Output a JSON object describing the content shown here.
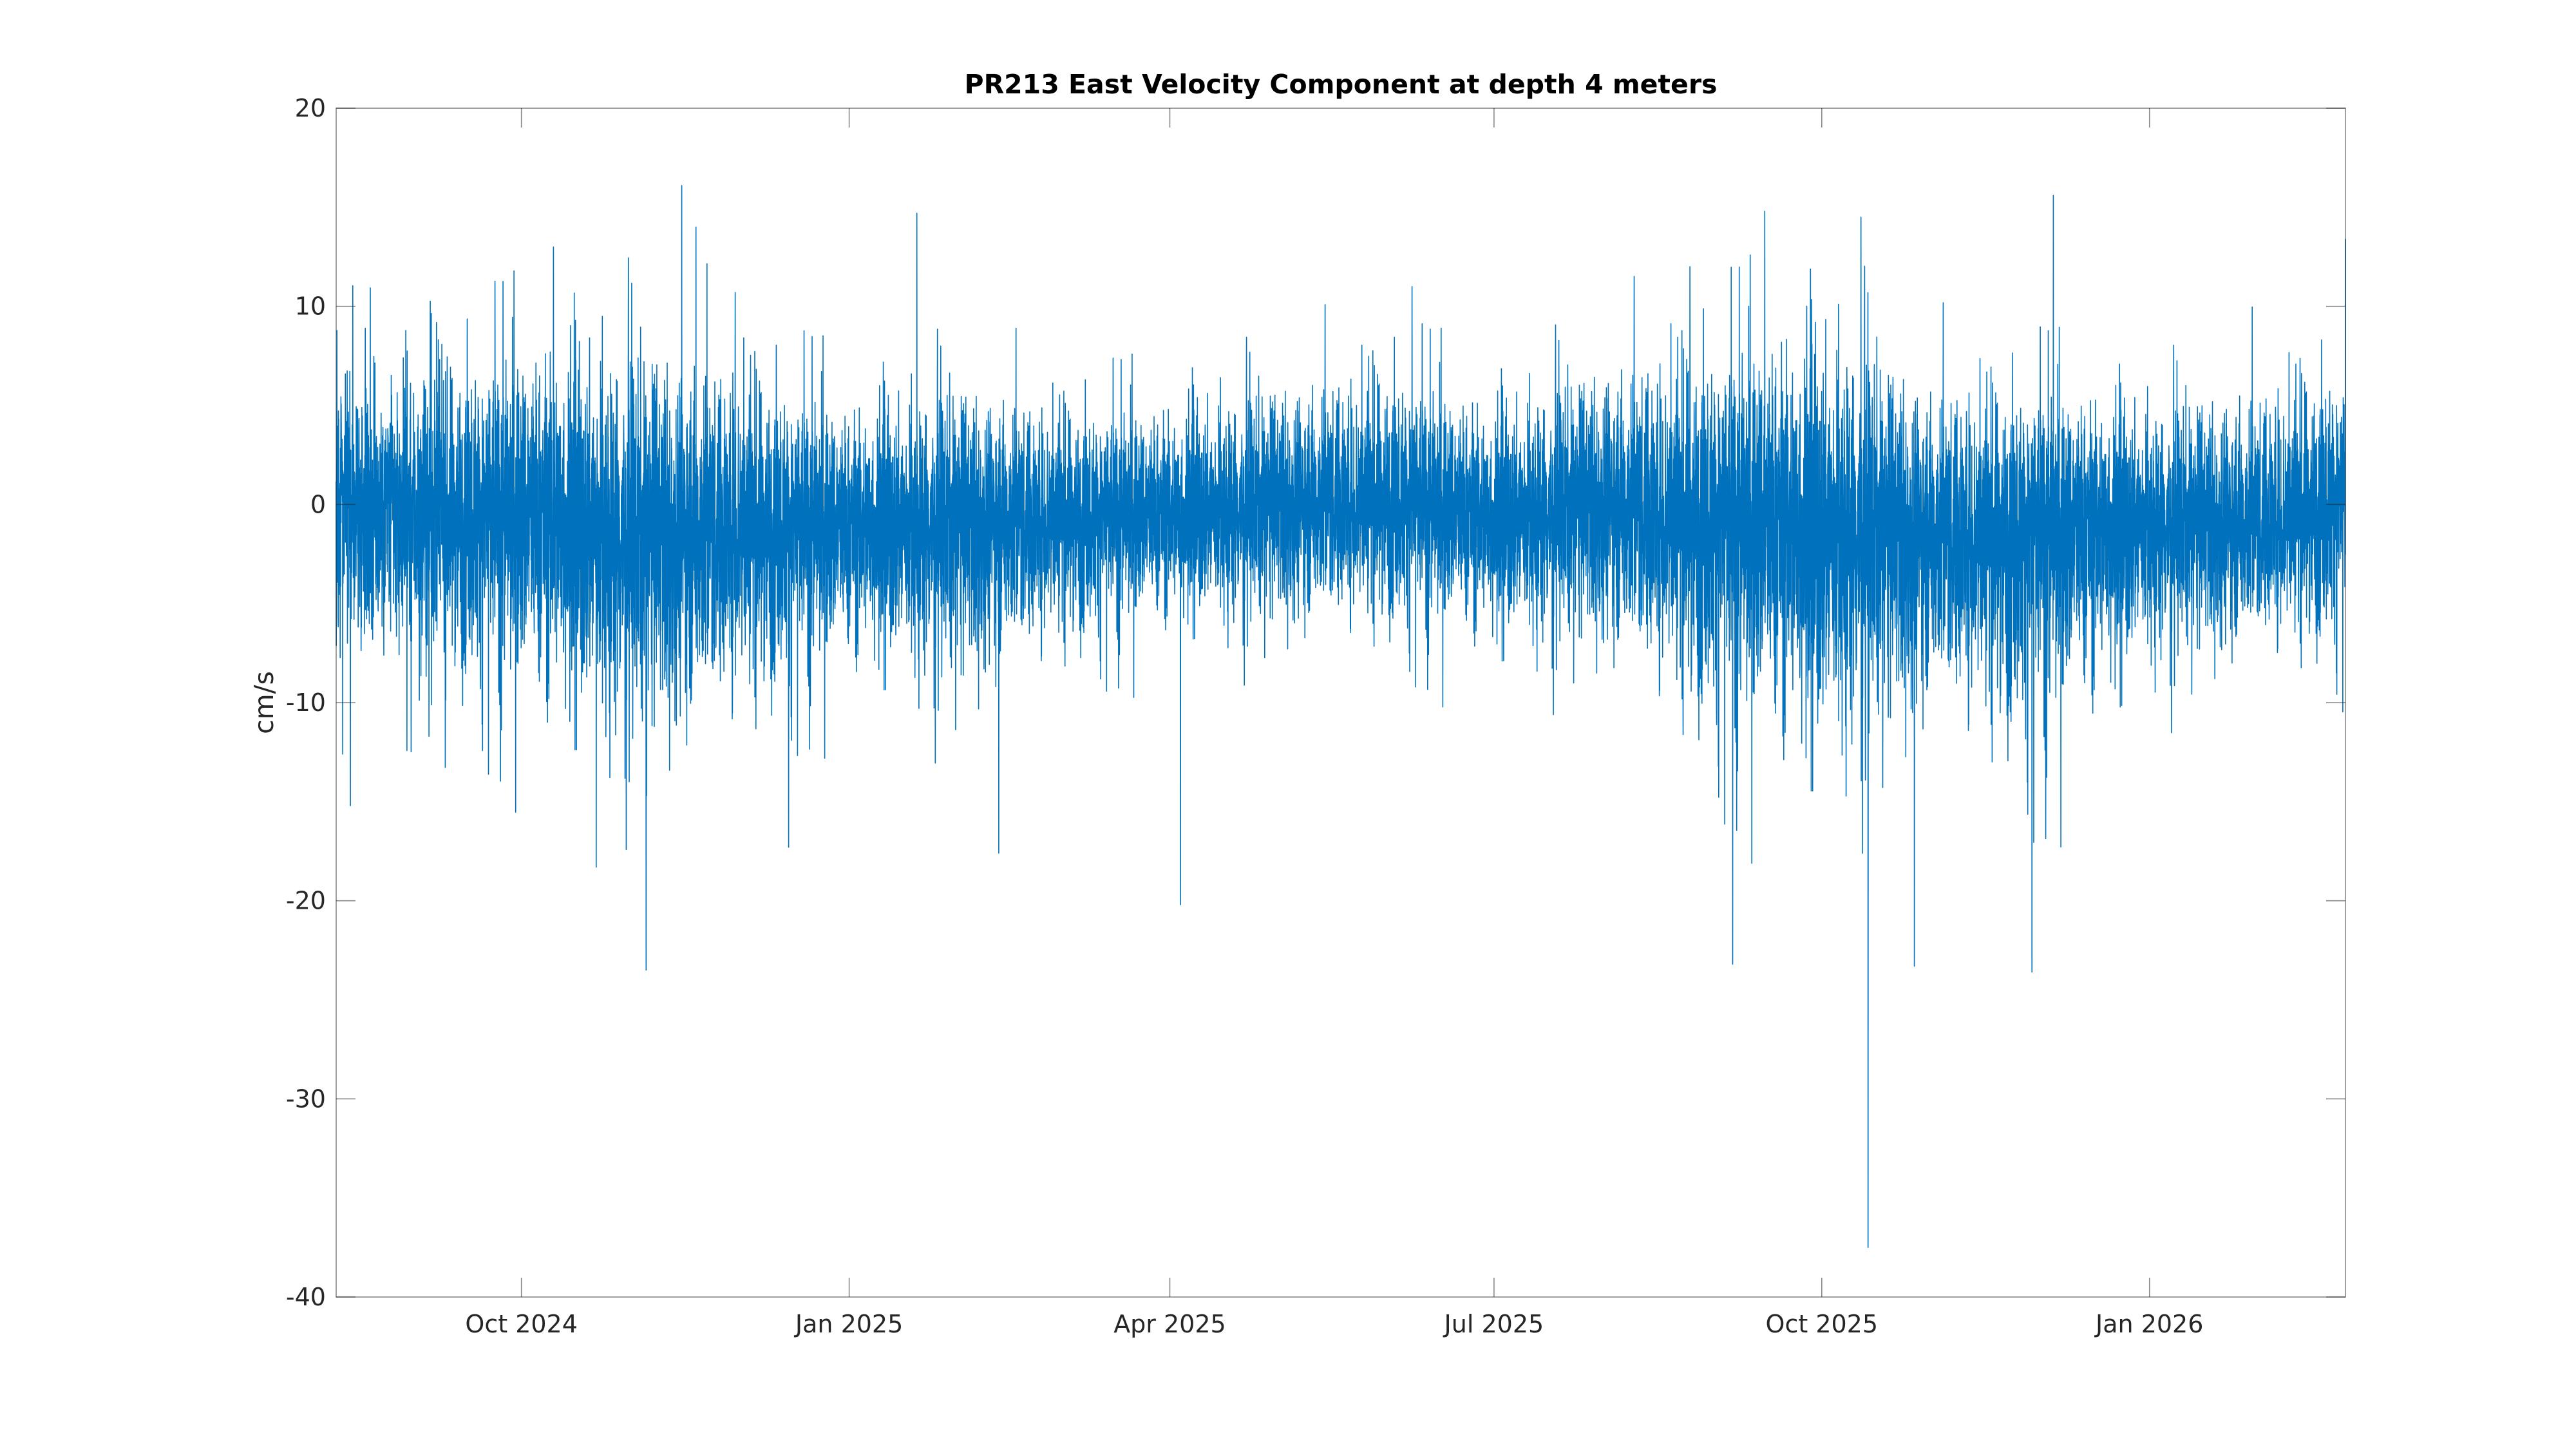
{
  "chart_data": {
    "type": "line",
    "title": "PR213 East Velocity Component at depth 4 meters",
    "xlabel": "",
    "ylabel": "cm/s",
    "x_start": "2024-08-10",
    "x_end": "2026-02-25",
    "xlim": [
      "2024-08-10",
      "2026-02-25"
    ],
    "ylim": [
      -40,
      20
    ],
    "grid": false,
    "legend": "none",
    "x_ticks": [
      {
        "date": "2024-10-01",
        "label": "Oct 2024"
      },
      {
        "date": "2025-01-01",
        "label": "Jan 2025"
      },
      {
        "date": "2025-04-01",
        "label": "Apr 2025"
      },
      {
        "date": "2025-07-01",
        "label": "Jul 2025"
      },
      {
        "date": "2025-10-01",
        "label": "Oct 2025"
      },
      {
        "date": "2026-01-01",
        "label": "Jan 2026"
      }
    ],
    "y_ticks": [
      {
        "value": 20,
        "label": "20"
      },
      {
        "value": 10,
        "label": "10"
      },
      {
        "value": 0,
        "label": "0"
      },
      {
        "value": -10,
        "label": "-10"
      },
      {
        "value": -20,
        "label": "-20"
      },
      {
        "value": -30,
        "label": "-30"
      },
      {
        "value": -40,
        "label": "-40"
      }
    ],
    "series": [
      {
        "color": "#0072bd",
        "peaks": [
          {
            "date": "2024-08-14",
            "value": -15.2
          },
          {
            "date": "2024-10-10",
            "value": 13
          },
          {
            "date": "2024-10-22",
            "value": -18.3
          },
          {
            "date": "2024-11-05",
            "value": -23.5
          },
          {
            "date": "2024-11-15",
            "value": 16.1
          },
          {
            "date": "2024-11-19",
            "value": 14.0
          },
          {
            "date": "2024-11-30",
            "value": 10.7
          },
          {
            "date": "2024-12-15",
            "value": -17.3
          },
          {
            "date": "2025-01-20",
            "value": 14.7
          },
          {
            "date": "2025-02-12",
            "value": -17.6
          },
          {
            "date": "2025-04-04",
            "value": -20.2
          },
          {
            "date": "2025-06-08",
            "value": 11.0
          },
          {
            "date": "2025-08-25",
            "value": 12.0
          },
          {
            "date": "2025-09-06",
            "value": -23.2
          },
          {
            "date": "2025-09-15",
            "value": 14.8
          },
          {
            "date": "2025-10-12",
            "value": 14.5
          },
          {
            "date": "2025-10-14",
            "value": -37.5
          },
          {
            "date": "2025-10-27",
            "value": -23.3
          },
          {
            "date": "2025-11-29",
            "value": -23.6
          },
          {
            "date": "2025-12-05",
            "value": 15.6
          },
          {
            "date": "2026-02-25",
            "value": 13.4
          }
        ],
        "values": [
          {
            "date": "2024-08-10",
            "value": 0.0
          },
          {
            "date": "2024-09-01",
            "value": -0.5
          },
          {
            "date": "2024-10-01",
            "value": -0.2
          },
          {
            "date": "2024-11-01",
            "value": -1.5
          },
          {
            "date": "2024-12-01",
            "value": -0.8
          },
          {
            "date": "2025-01-01",
            "value": -1.0
          },
          {
            "date": "2025-02-01",
            "value": -0.6
          },
          {
            "date": "2025-03-01",
            "value": -0.4
          },
          {
            "date": "2025-04-01",
            "value": -0.5
          },
          {
            "date": "2025-05-01",
            "value": 0.1
          },
          {
            "date": "2025-06-01",
            "value": 0.3
          },
          {
            "date": "2025-07-01",
            "value": -0.6
          },
          {
            "date": "2025-08-01",
            "value": 0.2
          },
          {
            "date": "2025-09-01",
            "value": -0.5
          },
          {
            "date": "2025-10-01",
            "value": -1.0
          },
          {
            "date": "2025-11-01",
            "value": -1.2
          },
          {
            "date": "2025-12-01",
            "value": -0.8
          },
          {
            "date": "2026-01-01",
            "value": -0.7
          },
          {
            "date": "2026-02-01",
            "value": -1.0
          },
          {
            "date": "2026-02-25",
            "value": 0.5
          }
        ],
        "envelope": [
          {
            "date": "2024-08-10",
            "upper": 7,
            "lower": -8
          },
          {
            "date": "2024-09-01",
            "upper": 7,
            "lower": -8
          },
          {
            "date": "2024-10-01",
            "upper": 8,
            "lower": -10
          },
          {
            "date": "2024-11-01",
            "upper": 8,
            "lower": -12
          },
          {
            "date": "2024-12-01",
            "upper": 7,
            "lower": -10
          },
          {
            "date": "2025-01-01",
            "upper": 5,
            "lower": -8
          },
          {
            "date": "2025-02-01",
            "upper": 6,
            "lower": -9
          },
          {
            "date": "2025-03-01",
            "upper": 5,
            "lower": -7
          },
          {
            "date": "2025-04-01",
            "upper": 5,
            "lower": -6
          },
          {
            "date": "2025-05-01",
            "upper": 6,
            "lower": -6
          },
          {
            "date": "2025-06-01",
            "upper": 7,
            "lower": -6
          },
          {
            "date": "2025-07-01",
            "upper": 5,
            "lower": -7
          },
          {
            "date": "2025-08-01",
            "upper": 7,
            "lower": -7
          },
          {
            "date": "2025-09-01",
            "upper": 8,
            "lower": -11
          },
          {
            "date": "2025-10-01",
            "upper": 9,
            "lower": -13
          },
          {
            "date": "2025-11-01",
            "upper": 6,
            "lower": -10
          },
          {
            "date": "2025-12-01",
            "upper": 6,
            "lower": -12
          },
          {
            "date": "2026-01-01",
            "upper": 5,
            "lower": -8
          },
          {
            "date": "2026-02-01",
            "upper": 6,
            "lower": -7
          },
          {
            "date": "2026-02-25",
            "upper": 7,
            "lower": -7
          }
        ]
      }
    ]
  }
}
